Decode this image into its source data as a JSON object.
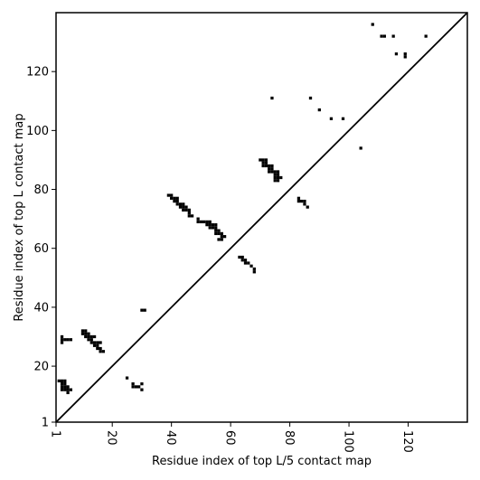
{
  "chart_data": {
    "type": "heatmap",
    "xlabel": "Residue index of top L/5 contact map",
    "ylabel": "Residue index of top L contact map",
    "xlim": [
      1,
      140
    ],
    "ylim": [
      1,
      140
    ],
    "xticks": [
      1,
      20,
      40,
      60,
      80,
      100,
      120
    ],
    "yticks": [
      1,
      20,
      40,
      60,
      80,
      100,
      120
    ],
    "diagonal": true,
    "grid": false,
    "color": "#000000",
    "contacts": [
      [
        3,
        15
      ],
      [
        3,
        14
      ],
      [
        3,
        13
      ],
      [
        3,
        12
      ],
      [
        4,
        15
      ],
      [
        4,
        14
      ],
      [
        4,
        13
      ],
      [
        4,
        12
      ],
      [
        5,
        13
      ],
      [
        5,
        12
      ],
      [
        5,
        11
      ],
      [
        6,
        12
      ],
      [
        2,
        15
      ],
      [
        3,
        30
      ],
      [
        3,
        29
      ],
      [
        4,
        29
      ],
      [
        5,
        29
      ],
      [
        6,
        29
      ],
      [
        3,
        28
      ],
      [
        10,
        32
      ],
      [
        10,
        31
      ],
      [
        11,
        32
      ],
      [
        11,
        31
      ],
      [
        11,
        30
      ],
      [
        12,
        31
      ],
      [
        12,
        30
      ],
      [
        12,
        29
      ],
      [
        13,
        30
      ],
      [
        13,
        29
      ],
      [
        13,
        28
      ],
      [
        14,
        30
      ],
      [
        14,
        28
      ],
      [
        14,
        27
      ],
      [
        15,
        28
      ],
      [
        15,
        27
      ],
      [
        15,
        26
      ],
      [
        16,
        28
      ],
      [
        16,
        26
      ],
      [
        16,
        25
      ],
      [
        17,
        25
      ],
      [
        25,
        16
      ],
      [
        27,
        14
      ],
      [
        27,
        13
      ],
      [
        28,
        13
      ],
      [
        29,
        13
      ],
      [
        30,
        14
      ],
      [
        30,
        12
      ],
      [
        30,
        39
      ],
      [
        31,
        39
      ],
      [
        39,
        78
      ],
      [
        40,
        78
      ],
      [
        40,
        77
      ],
      [
        41,
        77
      ],
      [
        41,
        76
      ],
      [
        42,
        77
      ],
      [
        42,
        76
      ],
      [
        42,
        75
      ],
      [
        43,
        75
      ],
      [
        43,
        74
      ],
      [
        44,
        75
      ],
      [
        44,
        74
      ],
      [
        44,
        73
      ],
      [
        45,
        74
      ],
      [
        45,
        73
      ],
      [
        46,
        73
      ],
      [
        46,
        72
      ],
      [
        46,
        71
      ],
      [
        47,
        71
      ],
      [
        49,
        70
      ],
      [
        49,
        69
      ],
      [
        50,
        69
      ],
      [
        51,
        69
      ],
      [
        52,
        69
      ],
      [
        52,
        68
      ],
      [
        53,
        69
      ],
      [
        53,
        68
      ],
      [
        53,
        67
      ],
      [
        54,
        68
      ],
      [
        54,
        67
      ],
      [
        55,
        68
      ],
      [
        55,
        67
      ],
      [
        55,
        66
      ],
      [
        55,
        65
      ],
      [
        56,
        66
      ],
      [
        56,
        65
      ],
      [
        57,
        65
      ],
      [
        57,
        64
      ],
      [
        57,
        63
      ],
      [
        56,
        63
      ],
      [
        58,
        64
      ],
      [
        63,
        57
      ],
      [
        64,
        57
      ],
      [
        64,
        56
      ],
      [
        65,
        56
      ],
      [
        65,
        55
      ],
      [
        66,
        55
      ],
      [
        67,
        54
      ],
      [
        68,
        53
      ],
      [
        68,
        52
      ],
      [
        70,
        90
      ],
      [
        71,
        90
      ],
      [
        71,
        89
      ],
      [
        71,
        88
      ],
      [
        72,
        90
      ],
      [
        72,
        89
      ],
      [
        72,
        88
      ],
      [
        73,
        88
      ],
      [
        73,
        87
      ],
      [
        73,
        86
      ],
      [
        74,
        88
      ],
      [
        74,
        87
      ],
      [
        74,
        86
      ],
      [
        75,
        86
      ],
      [
        75,
        85
      ],
      [
        75,
        84
      ],
      [
        75,
        83
      ],
      [
        76,
        86
      ],
      [
        76,
        85
      ],
      [
        76,
        84
      ],
      [
        76,
        83
      ],
      [
        77,
        84
      ],
      [
        74,
        111
      ],
      [
        83,
        77
      ],
      [
        83,
        76
      ],
      [
        84,
        76
      ],
      [
        85,
        76
      ],
      [
        85,
        75
      ],
      [
        86,
        74
      ],
      [
        87,
        111
      ],
      [
        90,
        107
      ],
      [
        94,
        104
      ],
      [
        98,
        104
      ],
      [
        104,
        94
      ],
      [
        108,
        136
      ],
      [
        111,
        132
      ],
      [
        112,
        132
      ],
      [
        115,
        132
      ],
      [
        116,
        126
      ],
      [
        119,
        126
      ],
      [
        119,
        125
      ],
      [
        126,
        132
      ]
    ]
  }
}
